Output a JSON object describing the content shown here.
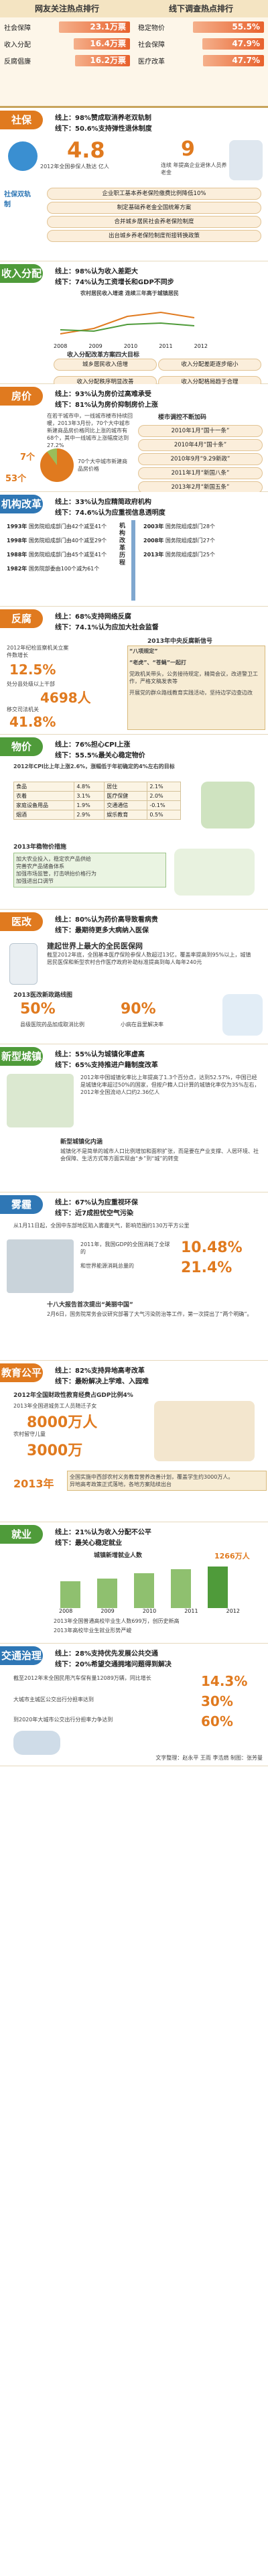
{
  "left_column": {
    "title": "网友关注热点排行",
    "items": [
      {
        "label": "社会保障",
        "value": "23.1万票"
      },
      {
        "label": "收入分配",
        "value": "16.4万票"
      },
      {
        "label": "反腐倡廉",
        "value": "16.2万票"
      }
    ]
  },
  "right_column": {
    "title": "线下调查热点排行",
    "items": [
      {
        "label": "稳定物价",
        "value": "55.5%"
      },
      {
        "label": "社会保障",
        "value": "47.9%"
      },
      {
        "label": "医疗改革",
        "value": "47.7%"
      }
    ]
  },
  "social_security": {
    "tag": "社保",
    "online": "线上：98%赞成取消养老双轨制",
    "offline": "线下：50.6%支持弹性退休制度",
    "stat1_number": "4.8",
    "stat1_text": "2012年全国参保人数达 亿人",
    "stat2_number": "9",
    "stat2_text": "连续 年提高企业退休人员养老金",
    "side_label": "社保双轨制",
    "reforms": [
      "企业职工基本养老保险缴费比例降低10%",
      "制定基础养老金全国统筹方案",
      "合并城乡居民社会养老保险制度",
      "出台城乡养老保险制度衔接转换政策"
    ]
  },
  "income": {
    "tag": "收入分配",
    "online": "线上：98%认为收入差距大",
    "offline": "线下：74%认为工资增长和GDP不同步",
    "chart_title": "农村居民收入增速 连续三年高于城镇居民",
    "years": [
      "2008",
      "2009",
      "2010",
      "2011",
      "2012"
    ],
    "plan_title": "收入分配改革方案四大目标",
    "goals": [
      "城乡居民收入倍增",
      "收入分配差距逐步缩小",
      "收入分配秩序明显改善",
      "收入分配格局趋于合理"
    ]
  },
  "housing": {
    "tag": "房价",
    "online": "线上：93%认为房价过高难承受",
    "offline": "线下：81%认为房价抑制房价上涨",
    "text": "在若干城市中，一线城市楼市持续回暖，2013年3月份，70个大中城市新建商品房价格同比上涨的城市有68个，其中一线城市上涨幅度达到27.2%",
    "number1": "7个",
    "number2": "53个",
    "label_up": "上涨",
    "note": "70个大中城市新建商品房价格",
    "right_title": "楼市调控不断加码",
    "events": [
      "2010年1月“国十一条”",
      "2010年4月“国十条”",
      "2010年9月“9.29新政”",
      "2011年1月“新国八条”",
      "2013年2月“新国五条”"
    ]
  },
  "government": {
    "tag": "机构改革",
    "online": "线上：33%认为应精简政府机构",
    "offline": "线下：74.6%认为应重视信息透明度",
    "years": [
      {
        "year": "1993年",
        "text": "国务院组成部门由42个减至41个"
      },
      {
        "year": "1998年",
        "text": "国务院组成部门由40个减至29个"
      },
      {
        "year": "1988年",
        "text": "国务院组成部门由45个减至41个"
      },
      {
        "year": "1982年",
        "text": "国务院部委由100个减为61个"
      },
      {
        "year": "2003年",
        "text": "国务院组成部门28个"
      },
      {
        "year": "2008年",
        "text": "国务院组成部门27个"
      },
      {
        "year": "2013年",
        "text": "国务院组成部门25个"
      }
    ],
    "center_label": "机构改革历程"
  },
  "anticorruption": {
    "tag": "反腐",
    "online": "线上：68%支持网络反腐",
    "offline": "线下：74.1%认为应加大社会监督",
    "left_text": "2012年纪检监察机关立案件数增长",
    "pct": "12.5%",
    "people_text": "处分县处级以上干部",
    "people_number": "4698人",
    "transfer_text": "移交司法机关",
    "pct2": "41.8%",
    "rules_title": "2013年中央反腐新信号",
    "rules": [
      "“八项规定”",
      "“老虎”、“苍蝇”一起打",
      "党政机关带头，公务接待规定，精简会议，改进警卫工作，严格文稿发表等",
      "开展党的群众路线教育实践活动，坚持边学边查边改"
    ]
  },
  "prices": {
    "tag": "物价",
    "online": "线上：76%担心CPI上涨",
    "offline": "线下：55.5%最关心稳定物价",
    "table_title": "2012年CPI比上年上涨2.6%，涨幅低于年初确定的4%左右的目标",
    "rows": [
      {
        "name": "食品",
        "v1": "4.8%",
        "name2": "居住",
        "v2": "2.1%"
      },
      {
        "name": "衣着",
        "v1": "3.1%",
        "name2": "医疗保健",
        "v2": "2.0%"
      },
      {
        "name": "家庭设备用品",
        "v1": "1.9%",
        "name2": "交通通信",
        "v2": "-0.1%"
      },
      {
        "name": "烟酒",
        "v1": "2.9%",
        "name2": "娱乐教育",
        "v2": "0.5%"
      }
    ],
    "measures_title": "2013年稳物价措施",
    "measures": [
      "加大农业投入，稳定农产品供给",
      "完善农产品储备体系",
      "加强市场监管，打击哄抬价格行为",
      "加强进出口调节"
    ]
  },
  "healthcare": {
    "tag": "医改",
    "online": "线上：80%认为药价高导致看病贵",
    "offline": "线下：最期待更多大病纳入医保",
    "title": "建起世界上最大的全民医保网",
    "text": "截至2012年底，全国基本医疗保险参保人数超过13亿，覆盖率提高到95%以上，城镇居民医保和新型农村合作医疗政府补助标准提高到每人每年240元",
    "policy_title": "2013医改新政路线图",
    "pct1": "50%",
    "pct2": "90%",
    "p1_text": "县级医院药品加成取消比例",
    "p2_text": "小病在县里解决率"
  },
  "urbanization": {
    "tag": "新型城镇化",
    "online": "线上：55%认为城镇化率虚高",
    "offline": "线下：65%支持推进户籍制度改革",
    "text": "2012年中国城镇化率比上年提高了1.3个百分点，达到52.57%，中国已经是城镇化率超过50%的国家，但按户籍人口计算的城镇化率仅为35%左右，2012年全国流动人口约2.36亿人",
    "title2": "新型城镇化内涵",
    "text2": "城镇化不是简单的城市人口比例增加和面积扩张，而是要在产业支撑、人居环境、社会保障、生活方式等方面实现由“乡”到“城”的转变"
  },
  "environment": {
    "tag": "雾霾",
    "online": "线上：67%认为应重视环保",
    "offline": "线下：近7成担忧空气污染",
    "intro": "从1月11日起，全国中东部地区陷入雾霾天气，影响范围约130万平方公里",
    "big1": "10.48%",
    "text1": "2011年，我国GDP的全国消耗了全球的",
    "big2": "21.4%",
    "text2": "和世界能源消耗总量的",
    "head2": "十八大报告首次提出“美丽中国”",
    "text3": "2月6日，国务院常务会议研究部署了大气污染防治等工作，第一次提出了“两个明确”。"
  },
  "education": {
    "tag": "教育公平",
    "online": "线上：82%支持异地高考改革",
    "offline": "线下：最盼解决上学难、入园难",
    "headline": "2012年全国财政性教育经费占GDP比例4%",
    "num1": "8000万人",
    "num1_text": "2013年全国进城务工人员随迁子女",
    "num2": "3000万",
    "num2_text": "农村留守儿童",
    "year": "2013年",
    "text": "全国实施中西部农村义务教育营养改善计划，覆盖学生约3000万人。",
    "text2": "异地高考政策正式落地，各地方案陆续出台"
  },
  "employment": {
    "tag": "就业",
    "online": "线上：21%认为收入分配不公平",
    "offline": "线下：最关心稳定就业",
    "chart_title": "城镇新增就业人数",
    "chart_unit": "1266万人",
    "years": [
      "2008",
      "2009",
      "2010",
      "2011",
      "2012"
    ],
    "text": "2013年全国普通高校毕业生人数699万，创历史新高",
    "text2": "2013年高校毕业生就业形势严峻"
  },
  "traffic": {
    "tag": "交通治理",
    "online": "线上：28%支持优先发展公共交通",
    "offline": "线下：20%希望交通拥堵问题得到解决",
    "text1": "截至2012年末全国民用汽车保有量12089万辆，同比增长",
    "pct1": "14.3%",
    "text2": "大城市主城区公交出行分担率达到",
    "pct2": "30%",
    "text3": "到2020年大城市公交出行分担率力争达到",
    "pct3": "60%"
  },
  "footer": "文字整理：赵永平 王雨 李浩燃  制图：张芳曼"
}
